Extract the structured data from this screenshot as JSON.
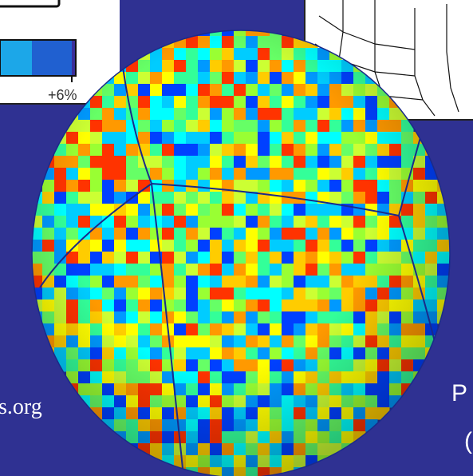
{
  "colorbar": {
    "end_label": "+6%"
  },
  "footer": {
    "link_fragment": "s.org",
    "right_text_line1": "P",
    "right_text_line2": "("
  }
}
